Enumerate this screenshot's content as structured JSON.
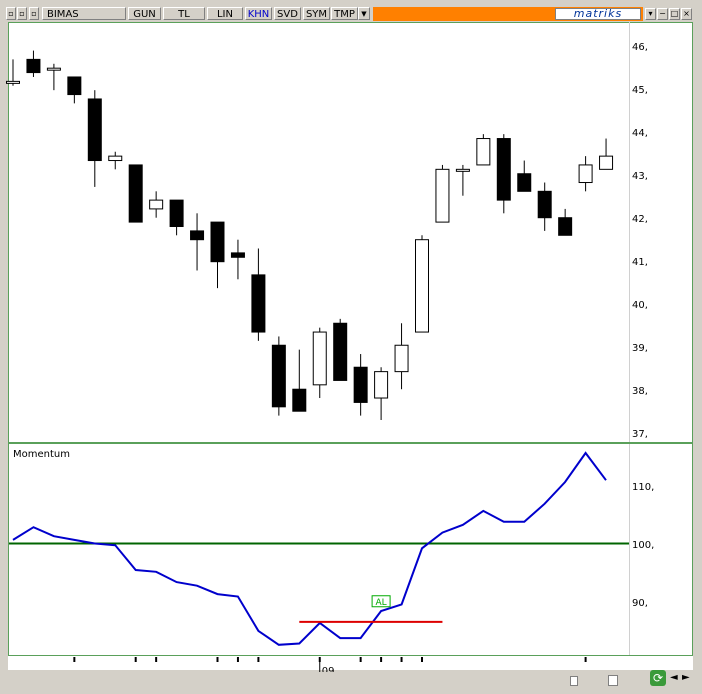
{
  "toolbar": {
    "symbol": "BIMAS",
    "buttons": [
      {
        "label": "GUN",
        "active": false
      },
      {
        "label": "TL",
        "active": false
      },
      {
        "label": "LIN",
        "active": false
      },
      {
        "label": "KHN",
        "active": true
      },
      {
        "label": "SVD",
        "active": false
      },
      {
        "label": "SYM",
        "active": false
      },
      {
        "label": "TMP",
        "active": false
      }
    ],
    "brand": "matriks"
  },
  "colors": {
    "panel_border": "#5aa05a",
    "up_fill": "#ffffff",
    "down_fill": "#000000",
    "momentum_line": "#0000cc",
    "baseline": "#006400",
    "trigger_line": "#dd0000",
    "signal_badge": "#00aa00"
  },
  "chart_data": [
    {
      "type": "candlestick",
      "title": "",
      "yticks": [
        "37,",
        "38,",
        "39,",
        "40,",
        "41,",
        "42,",
        "43,",
        "44,",
        "45,",
        "46,"
      ],
      "ylim": [
        36.8,
        46.35
      ],
      "grid": false,
      "candles": [
        {
          "o": 45.0,
          "h": 45.5,
          "l": 44.9,
          "c": 45.0
        },
        {
          "o": 45.5,
          "h": 45.7,
          "l": 45.1,
          "c": 45.2
        },
        {
          "o": 45.3,
          "h": 45.4,
          "l": 44.8,
          "c": 45.3
        },
        {
          "o": 45.1,
          "h": 45.1,
          "l": 44.5,
          "c": 44.7
        },
        {
          "o": 44.6,
          "h": 44.8,
          "l": 42.6,
          "c": 43.2
        },
        {
          "o": 43.2,
          "h": 43.4,
          "l": 43.0,
          "c": 43.3
        },
        {
          "o": 43.1,
          "h": 43.1,
          "l": 41.8,
          "c": 41.8
        },
        {
          "o": 42.1,
          "h": 42.5,
          "l": 41.9,
          "c": 42.3
        },
        {
          "o": 42.3,
          "h": 42.3,
          "l": 41.5,
          "c": 41.7
        },
        {
          "o": 41.6,
          "h": 42.0,
          "l": 40.7,
          "c": 41.4
        },
        {
          "o": 41.8,
          "h": 41.8,
          "l": 40.3,
          "c": 40.9
        },
        {
          "o": 41.1,
          "h": 41.4,
          "l": 40.5,
          "c": 41.0
        },
        {
          "o": 40.6,
          "h": 41.2,
          "l": 39.1,
          "c": 39.3
        },
        {
          "o": 39.0,
          "h": 39.2,
          "l": 37.4,
          "c": 37.6
        },
        {
          "o": 38.0,
          "h": 38.9,
          "l": 37.5,
          "c": 37.5
        },
        {
          "o": 38.1,
          "h": 39.4,
          "l": 37.8,
          "c": 39.3
        },
        {
          "o": 39.5,
          "h": 39.6,
          "l": 38.2,
          "c": 38.2
        },
        {
          "o": 38.5,
          "h": 38.8,
          "l": 37.4,
          "c": 37.7
        },
        {
          "o": 37.8,
          "h": 38.5,
          "l": 37.3,
          "c": 38.4
        },
        {
          "o": 38.4,
          "h": 39.5,
          "l": 38.0,
          "c": 39.0
        },
        {
          "o": 39.3,
          "h": 41.5,
          "l": 39.3,
          "c": 41.4
        },
        {
          "o": 41.8,
          "h": 43.1,
          "l": 41.8,
          "c": 43.0
        },
        {
          "o": 43.0,
          "h": 43.1,
          "l": 42.4,
          "c": 43.0
        },
        {
          "o": 43.1,
          "h": 43.8,
          "l": 43.1,
          "c": 43.7
        },
        {
          "o": 43.7,
          "h": 43.8,
          "l": 42.0,
          "c": 42.3
        },
        {
          "o": 42.9,
          "h": 43.2,
          "l": 42.5,
          "c": 42.5
        },
        {
          "o": 42.5,
          "h": 42.7,
          "l": 41.6,
          "c": 41.9
        },
        {
          "o": 41.9,
          "h": 42.1,
          "l": 41.5,
          "c": 41.5
        },
        {
          "o": 42.7,
          "h": 43.3,
          "l": 42.5,
          "c": 43.1
        },
        {
          "o": 43.0,
          "h": 43.7,
          "l": 43.0,
          "c": 43.3
        }
      ]
    },
    {
      "type": "line",
      "title": "Momentum",
      "yticks": [
        "90,",
        "100,",
        "110,"
      ],
      "ylim": [
        81.5,
        116.5
      ],
      "baseline": 100,
      "series": [
        {
          "values": [
            100.6,
            102.7,
            101.2,
            100.6,
            100.0,
            99.7,
            95.6,
            95.3,
            93.6,
            93.0,
            91.6,
            91.2,
            85.5,
            83.2,
            83.4,
            86.8,
            84.3,
            84.3,
            88.8,
            89.9,
            99.2,
            101.8,
            103.1,
            105.4,
            103.6,
            103.6,
            106.6,
            110.2,
            115.0,
            110.5
          ]
        }
      ],
      "trigger": {
        "value": 87.0,
        "start_index": 14,
        "end_index": 21
      },
      "signal": {
        "label": "AL",
        "index": 18,
        "value": 90.0
      }
    }
  ],
  "x_axis": {
    "label": "09",
    "label_index": 15,
    "tick_indices": [
      3,
      6,
      7,
      10,
      11,
      12,
      15,
      17,
      18,
      19,
      20,
      28
    ]
  }
}
